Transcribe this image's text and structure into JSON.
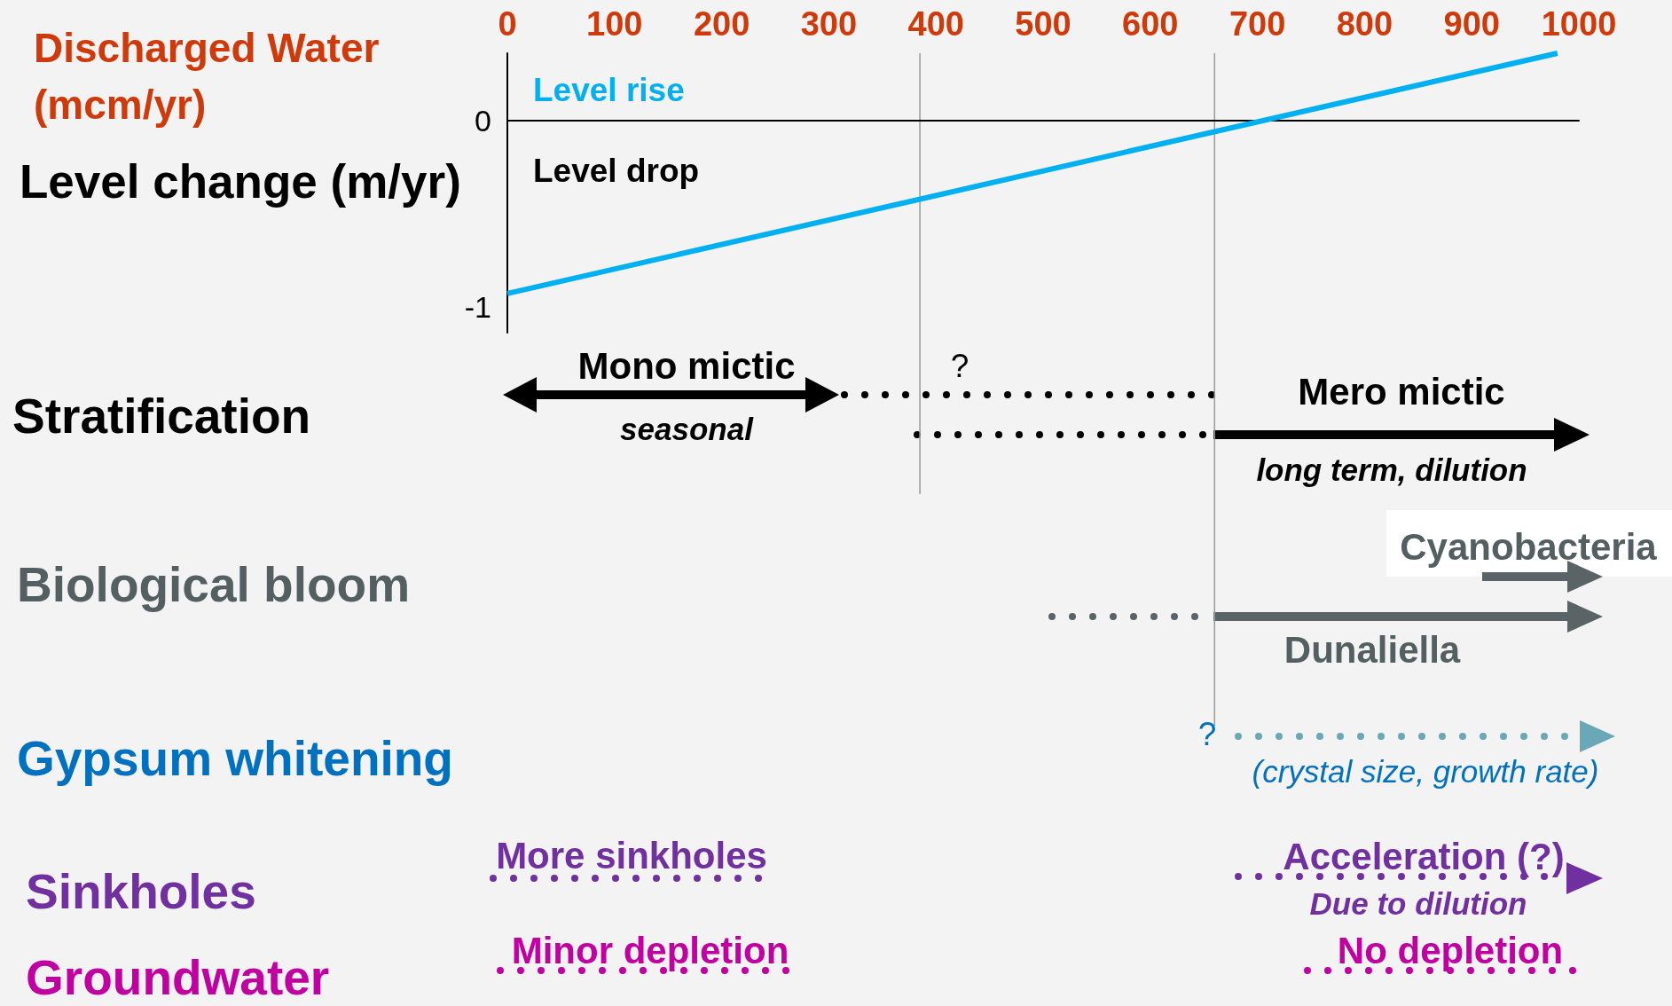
{
  "chart_data": {
    "type": "line",
    "xlabel": "Discharged Water (mcm/yr)",
    "ylabel": "Level change (m/yr)",
    "x": [
      0,
      980
    ],
    "series": [
      {
        "color": "#00b0f0",
        "values": [
          -0.93,
          0.36
        ]
      }
    ],
    "xlim": [
      0,
      1000
    ],
    "xticks": [
      0,
      100,
      200,
      300,
      400,
      500,
      600,
      700,
      800,
      900,
      1000
    ],
    "ylim": [
      -1.14,
      0.36
    ],
    "yticks": [
      0,
      -1
    ],
    "ref_lines": [
      {
        "axis": "x",
        "value": 385,
        "color": "#999999"
      },
      {
        "axis": "x",
        "value": 660,
        "color": "#999999"
      }
    ],
    "annotations": [
      "Level rise",
      "Level drop",
      "Stratification",
      "Mono mictic",
      "seasonal",
      "?",
      "Mero mictic",
      "long term, dilution",
      "Biological bloom",
      "Cyanobacteria",
      "Dunaliella",
      "Gypsum whitening",
      "?",
      "(crystal size, growth rate)",
      "Sinkholes",
      "More sinkholes",
      "Acceleration (?)",
      "Due to dilution",
      "Groundwater",
      "Minor depletion",
      "No depletion"
    ]
  }
}
